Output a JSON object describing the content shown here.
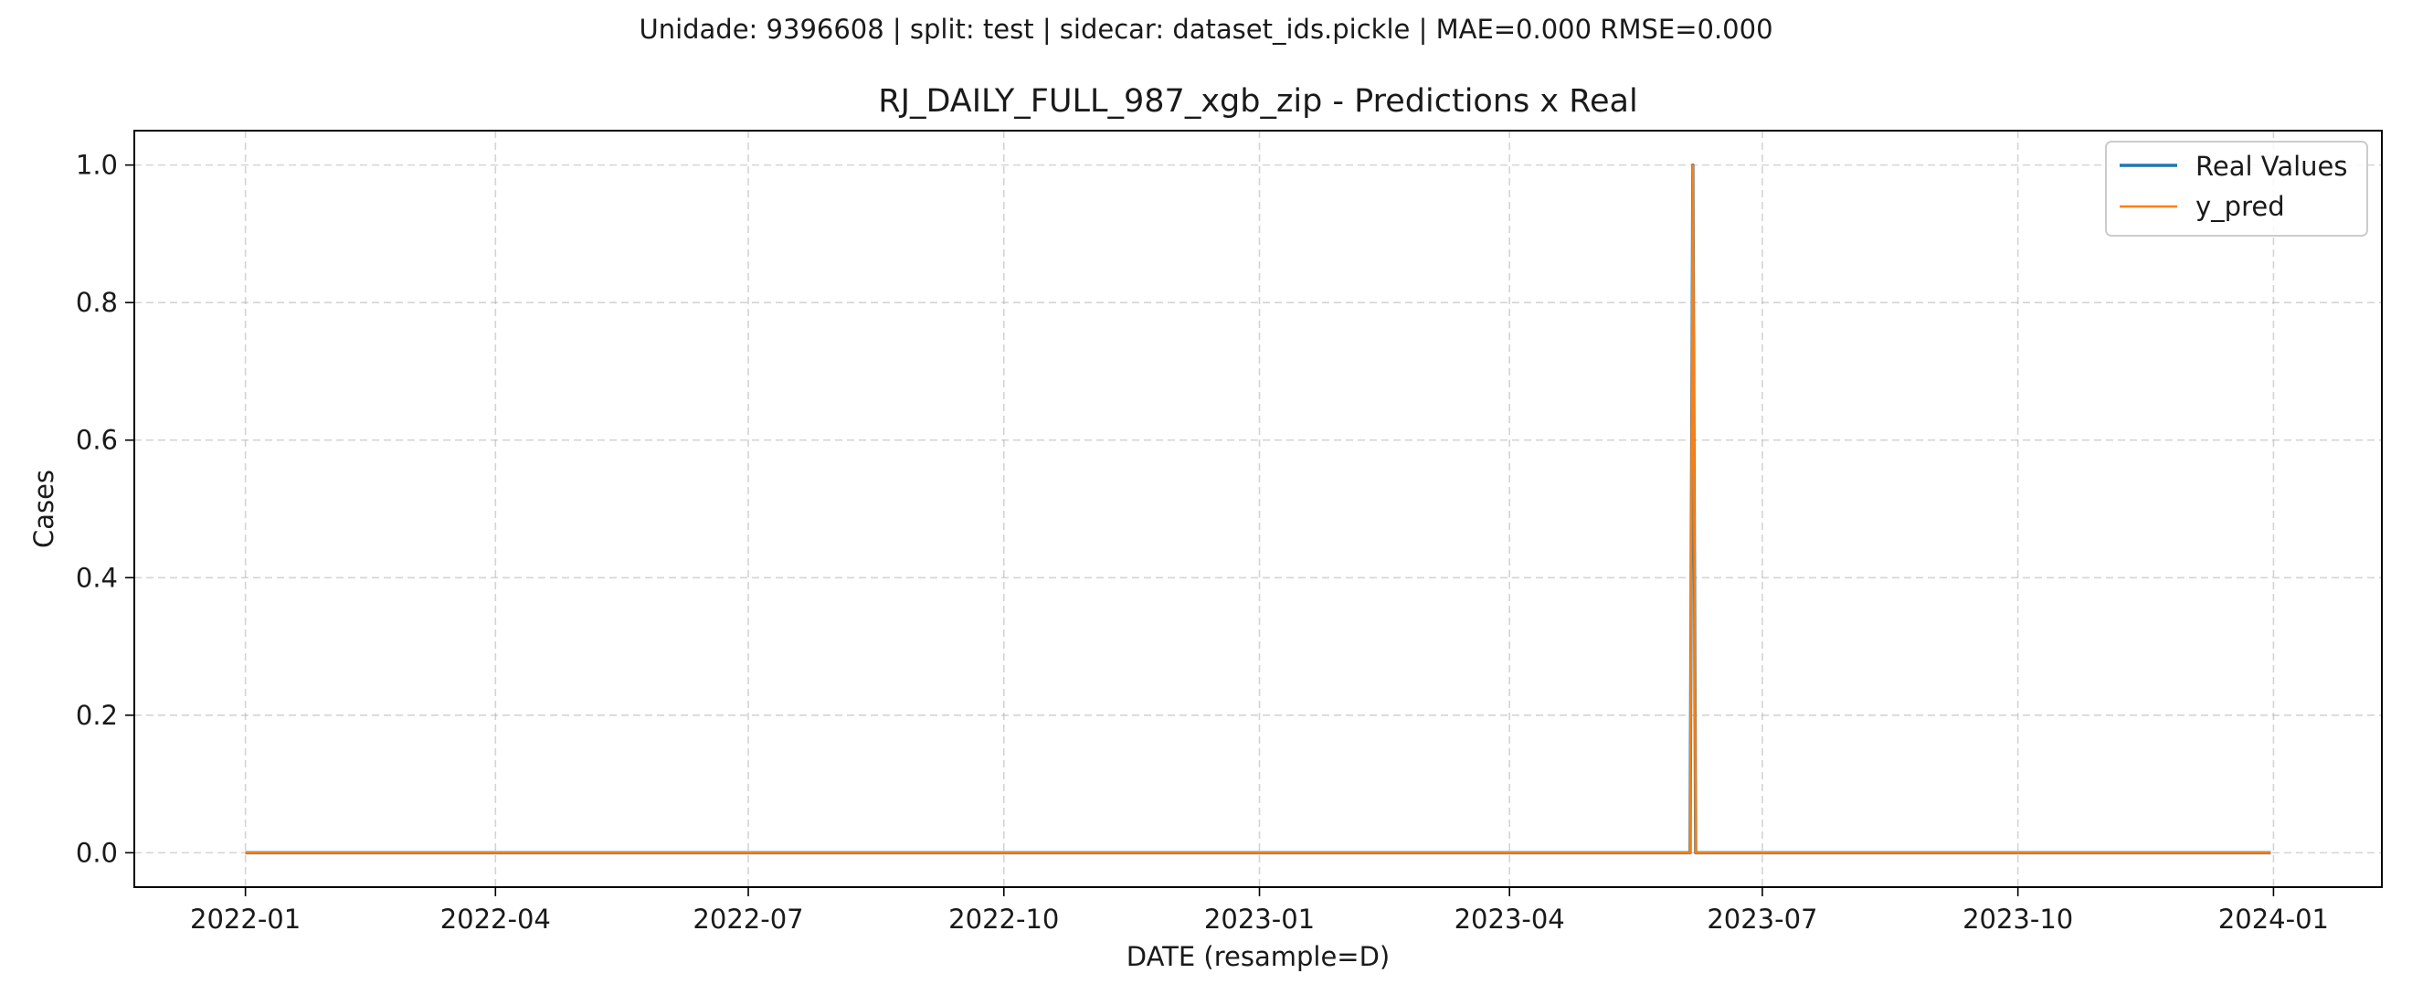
{
  "figure": {
    "suptitle": "Unidade: 9396608 | split: test | sidecar: dataset_ids.pickle | MAE=0.000  RMSE=0.000"
  },
  "chart_data": {
    "type": "line",
    "title": "RJ_DAILY_FULL_987_xgb_zip - Predictions x Real",
    "xlabel": "DATE (resample=D)",
    "ylabel": "Cases",
    "x_axis": "date",
    "xlim": [
      "2021-11-22",
      "2024-02-09"
    ],
    "ylim": [
      -0.05,
      1.05
    ],
    "x_ticks": [
      "2022-01",
      "2022-04",
      "2022-07",
      "2022-10",
      "2023-01",
      "2023-04",
      "2023-07",
      "2023-10",
      "2024-01"
    ],
    "y_ticks": [
      "0.0",
      "0.2",
      "0.4",
      "0.6",
      "0.8",
      "1.0"
    ],
    "grid": true,
    "legend_position": "top-right",
    "series": [
      {
        "name": "Real Values",
        "color": "#1f77b4",
        "points": [
          [
            "2022-01-01",
            0
          ],
          [
            "2023-06-05",
            0
          ],
          [
            "2023-06-06",
            1
          ],
          [
            "2023-06-07",
            0
          ],
          [
            "2023-12-31",
            0
          ]
        ]
      },
      {
        "name": "y_pred",
        "color": "#ff7f0e",
        "points": [
          [
            "2022-01-01",
            0
          ],
          [
            "2023-06-05",
            0
          ],
          [
            "2023-06-06",
            1
          ],
          [
            "2023-06-07",
            0
          ],
          [
            "2023-12-31",
            0
          ]
        ]
      }
    ]
  }
}
